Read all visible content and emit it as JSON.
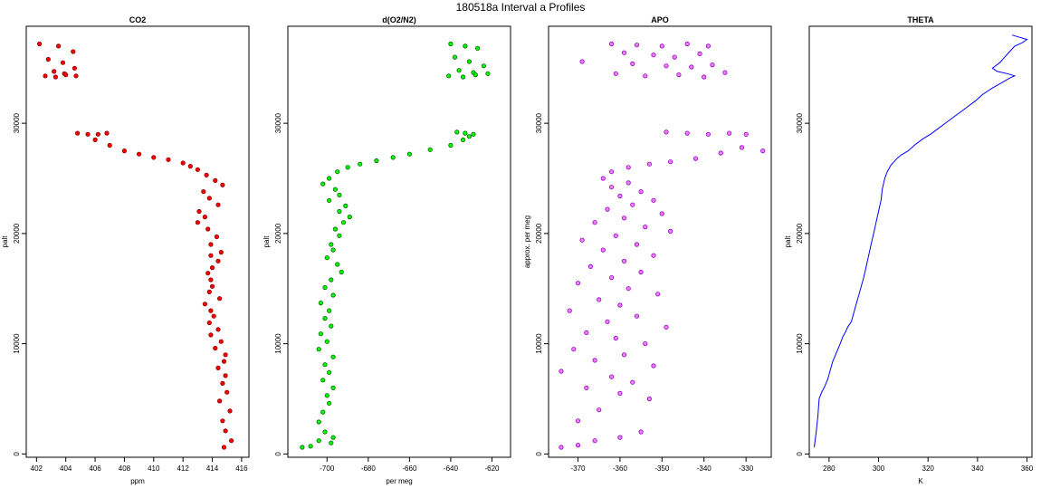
{
  "figure": {
    "title": "180518a   Interval a Profiles"
  },
  "chart_data": [
    {
      "type": "scatter",
      "title": "CO2",
      "xlabel": "ppm",
      "ylabel": "palt",
      "xlim": [
        401.3,
        416.5
      ],
      "ylim": [
        -300,
        38800
      ],
      "xticks": [
        402,
        404,
        406,
        408,
        410,
        412,
        414,
        416
      ],
      "yticks": [
        0,
        10000,
        20000,
        30000
      ],
      "point_color": "#ff0000",
      "outline_color": "#8b0000",
      "series": [
        {
          "x": [
            402.2,
            403.5,
            404.5,
            402.8,
            403.8,
            404.6,
            403.2,
            403.9,
            402.6,
            403.3,
            404.0,
            404.7
          ],
          "y": [
            37200,
            37000,
            36500,
            35800,
            35500,
            35000,
            34700,
            34500,
            34300,
            34200,
            34400,
            34300
          ]
        },
        {
          "x": [
            404.8,
            405.5,
            406.2,
            406.8
          ],
          "y": [
            29100,
            29000,
            29000,
            29100
          ]
        },
        {
          "x": [
            406.0,
            407.0,
            408.0,
            409.0,
            410.0,
            411.0,
            412.0,
            412.5
          ],
          "y": [
            28500,
            28000,
            27500,
            27200,
            26900,
            26700,
            26400,
            26100
          ]
        },
        {
          "x": [
            413.0,
            413.6,
            414.2,
            414.7,
            413.4,
            413.8,
            414.4,
            413.1,
            413.5,
            413.0,
            413.7,
            414.3,
            413.9,
            414.6
          ],
          "y": [
            25800,
            25300,
            24800,
            24400,
            23800,
            23200,
            22600,
            22000,
            21500,
            21000,
            20400,
            19700,
            19000,
            18300
          ]
        },
        {
          "x": [
            413.9,
            414.4,
            414.0,
            413.7,
            413.9,
            414.0,
            413.8,
            414.5,
            413.5,
            413.9,
            414.1,
            413.8,
            414.4,
            413.9,
            414.6,
            414.2,
            414.9,
            414.8,
            414.4,
            414.9,
            414.7,
            415.0,
            414.5,
            415.2,
            414.7,
            414.9,
            415.3,
            414.8
          ],
          "y": [
            18000,
            17500,
            16900,
            16400,
            15800,
            15200,
            14700,
            14100,
            13600,
            13000,
            12500,
            11900,
            11300,
            10800,
            10200,
            9600,
            9000,
            8400,
            7800,
            7100,
            6400,
            5600,
            4800,
            3900,
            3000,
            2100,
            1200,
            600
          ]
        }
      ]
    },
    {
      "type": "scatter",
      "title": "d(O2/N2)",
      "xlabel": "per meg",
      "ylabel": "palt",
      "xlim": [
        -719,
        -611
      ],
      "ylim": [
        -300,
        38800
      ],
      "xticks": [
        -700,
        -680,
        -660,
        -640,
        -620
      ],
      "yticks": [
        0,
        10000,
        20000,
        30000
      ],
      "point_color": "#00ff00",
      "outline_color": "#006400",
      "series": [
        {
          "x": [
            -640,
            -633,
            -627,
            -638,
            -631,
            -624,
            -636,
            -629,
            -622,
            -641,
            -634,
            -628
          ],
          "y": [
            37200,
            37000,
            36800,
            36000,
            35600,
            35200,
            34800,
            34600,
            34500,
            34300,
            34200,
            34400
          ]
        },
        {
          "x": [
            -637,
            -633,
            -629,
            -631,
            -634
          ],
          "y": [
            29200,
            29100,
            29000,
            28800,
            28500
          ]
        },
        {
          "x": [
            -640,
            -650,
            -660,
            -668,
            -676,
            -684,
            -690,
            -695
          ],
          "y": [
            28000,
            27600,
            27200,
            26900,
            26600,
            26300,
            26000,
            25600
          ]
        },
        {
          "x": [
            -699,
            -702,
            -696,
            -694,
            -699,
            -691,
            -694,
            -689,
            -692,
            -696,
            -694,
            -698
          ],
          "y": [
            25000,
            24500,
            24000,
            23500,
            23000,
            22500,
            22000,
            21500,
            21000,
            20400,
            19800,
            19000
          ]
        },
        {
          "x": [
            -697,
            -700,
            -695,
            -693,
            -698,
            -701,
            -697,
            -703,
            -699,
            -701,
            -698,
            -703,
            -700,
            -704,
            -697,
            -701,
            -699,
            -702,
            -697,
            -700,
            -699,
            -702,
            -704,
            -701,
            -698
          ],
          "y": [
            18500,
            17800,
            17200,
            16500,
            15800,
            15100,
            14400,
            13700,
            13000,
            12300,
            11600,
            10900,
            10200,
            9500,
            8800,
            8100,
            7400,
            6700,
            6000,
            5300,
            4600,
            3800,
            2900,
            2000,
            1000
          ]
        },
        {
          "x": [
            -712,
            -708,
            -704,
            -697
          ],
          "y": [
            600,
            700,
            1200,
            1500
          ]
        }
      ]
    },
    {
      "type": "scatter",
      "title": "APO",
      "xlabel": "",
      "ylabel": "approx. per meg",
      "xlim": [
        -377,
        -324
      ],
      "ylim": [
        -300,
        38800
      ],
      "xticks": [
        -370,
        -360,
        -350,
        -340,
        -330
      ],
      "yticks": [
        0,
        10000,
        20000,
        30000
      ],
      "point_color": "#ee82ee",
      "outline_color": "#9400d3",
      "series": [
        {
          "x": [
            -362,
            -356,
            -350,
            -344,
            -339,
            -359,
            -352,
            -347,
            -341,
            -357,
            -349,
            -343,
            -338,
            -361,
            -354,
            -346,
            -340,
            -335,
            -369
          ],
          "y": [
            37200,
            37100,
            37000,
            37200,
            37000,
            36400,
            36200,
            36000,
            36300,
            35400,
            35200,
            35100,
            35300,
            34500,
            34300,
            34400,
            34200,
            34600,
            35600
          ]
        },
        {
          "x": [
            -349,
            -344,
            -339,
            -334,
            -330
          ],
          "y": [
            29200,
            29100,
            29000,
            29100,
            29000
          ]
        },
        {
          "x": [
            -326,
            -331,
            -336,
            -342,
            -348,
            -353,
            -358,
            -362
          ],
          "y": [
            27500,
            27800,
            27300,
            26800,
            26500,
            26300,
            26000,
            25600
          ]
        },
        {
          "x": [
            -364,
            -358,
            -362,
            -355,
            -360,
            -352,
            -357,
            -363,
            -350,
            -359,
            -366,
            -354,
            -348,
            -361,
            -369,
            -356,
            -364,
            -352,
            -359,
            -367,
            -355,
            -362,
            -370,
            -358,
            -351,
            -365,
            -360,
            -372,
            -356,
            -363,
            -349,
            -368,
            -361,
            -354,
            -371,
            -359,
            -366,
            -352,
            -374,
            -362,
            -357,
            -368,
            -360,
            -353,
            -365,
            -370
          ],
          "y": [
            25000,
            24600,
            24200,
            23800,
            23400,
            23000,
            22600,
            22200,
            21800,
            21400,
            21000,
            20600,
            20200,
            19800,
            19400,
            19000,
            18500,
            18000,
            17500,
            17000,
            16500,
            16000,
            15500,
            15000,
            14500,
            14000,
            13500,
            13000,
            12500,
            12000,
            11500,
            11000,
            10500,
            10000,
            9500,
            9000,
            8500,
            8000,
            7500,
            7000,
            6500,
            6000,
            5500,
            5000,
            4000,
            3000
          ]
        },
        {
          "x": [
            -374,
            -370,
            -366,
            -360,
            -355
          ],
          "y": [
            600,
            800,
            1200,
            1500,
            2000
          ]
        }
      ]
    },
    {
      "type": "line",
      "title": "THETA",
      "xlabel": "K",
      "ylabel": "palt",
      "xlim": [
        272,
        362
      ],
      "ylim": [
        -300,
        38800
      ],
      "xticks": [
        280,
        300,
        320,
        340,
        360
      ],
      "yticks": [
        0,
        10000,
        20000,
        30000
      ],
      "line_color": "#0000ff",
      "series": [
        {
          "x": [
            274.0,
            274.8,
            275.5,
            276.0,
            277.0,
            278.0,
            279.5,
            280.5,
            281.5,
            283.0,
            284.5,
            285.5,
            286.5,
            287.5,
            289.0,
            290.0,
            291.0,
            292.0,
            293.0,
            294.0,
            295.0,
            296.0,
            297.0,
            298.0,
            299.0,
            300.0,
            301.0,
            301.5,
            302.5,
            303.5,
            305.0,
            307.0,
            309.0,
            312.0,
            315.0,
            318.0,
            321.0,
            324.0,
            327.0,
            330.0,
            333.0,
            336.0,
            339.0,
            342.0,
            346.0,
            350.0,
            353.0,
            355.0,
            352.0,
            348.0,
            346.0,
            349.0,
            351.0,
            353.0,
            355.0,
            358.0,
            360.0,
            357.0,
            354.0
          ],
          "y": [
            600,
            2000,
            3500,
            5000,
            5600,
            6000,
            6800,
            7600,
            8400,
            9200,
            10000,
            10600,
            11000,
            11500,
            12000,
            12800,
            13600,
            14400,
            15200,
            16000,
            17000,
            18000,
            19000,
            20000,
            21000,
            22000,
            23000,
            24000,
            25000,
            25600,
            26200,
            26700,
            27100,
            27500,
            28100,
            28600,
            29000,
            29500,
            30000,
            30500,
            31000,
            31500,
            32000,
            32600,
            33200,
            33700,
            34100,
            34300,
            34500,
            34700,
            35000,
            35500,
            36000,
            36500,
            37000,
            37300,
            37600,
            37800,
            38000
          ]
        }
      ]
    }
  ]
}
